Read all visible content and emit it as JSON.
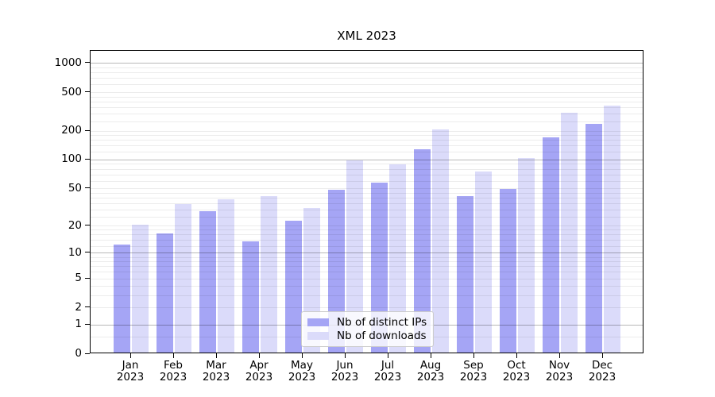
{
  "chart_data": {
    "type": "bar",
    "title": "XML 2023",
    "categories": [
      "Jan 2023",
      "Feb 2023",
      "Mar 2023",
      "Apr 2023",
      "May 2023",
      "Jun 2023",
      "Jul 2023",
      "Aug 2023",
      "Sep 2023",
      "Oct 2023",
      "Nov 2023",
      "Dec 2023"
    ],
    "x_tick_month_labels": [
      "Jan",
      "Feb",
      "Mar",
      "Apr",
      "May",
      "Jun",
      "Jul",
      "Aug",
      "Sep",
      "Oct",
      "Nov",
      "Dec"
    ],
    "x_tick_year_label": "2023",
    "series": [
      {
        "name": "Nb of distinct IPs",
        "color": "#a5a5f5",
        "values": [
          12,
          16,
          28,
          13,
          22,
          47,
          56,
          125,
          40,
          48,
          165,
          230
        ]
      },
      {
        "name": "Nb of downloads",
        "color": "#dbdbfa",
        "values": [
          20,
          33,
          37,
          40,
          30,
          95,
          86,
          200,
          73,
          100,
          300,
          350
        ]
      }
    ],
    "xlabel": "",
    "ylabel": "",
    "y_ticks": [
      0,
      1,
      2,
      5,
      10,
      20,
      50,
      100,
      200,
      500,
      1000
    ],
    "y_minor_gridlines": [
      0.5,
      3,
      4,
      6,
      7,
      8,
      9,
      12,
      14,
      16,
      18,
      25,
      30,
      35,
      40,
      45,
      60,
      70,
      80,
      90,
      120,
      140,
      160,
      180,
      250,
      300,
      350,
      400,
      450,
      600,
      700,
      800,
      900
    ],
    "y_scale": "log10(1+value)",
    "ylim": [
      0,
      1350
    ],
    "grid": "horizontal major+minor, drawn over bars",
    "legend": {
      "position": "inside lower-center",
      "items": [
        "Nb of distinct IPs",
        "Nb of downloads"
      ]
    }
  },
  "colors": {
    "distinct_ips_bar": "#a5a5f5",
    "downloads_bar": "#dbdbfa",
    "grid_major": "rgba(0,0,0,0.28)",
    "grid_minor": "rgba(0,0,0,0.075)",
    "spine": "#000000",
    "legend_border": "#cccccc",
    "background": "#ffffff"
  }
}
